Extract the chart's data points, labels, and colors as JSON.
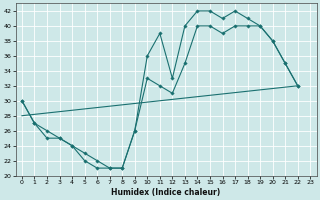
{
  "xlabel": "Humidex (Indice chaleur)",
  "bg_color": "#cee8e8",
  "line_color": "#1a7070",
  "grid_color": "#ffffff",
  "xlim": [
    -0.5,
    23.5
  ],
  "ylim": [
    20,
    43
  ],
  "yticks": [
    20,
    22,
    24,
    26,
    28,
    30,
    32,
    34,
    36,
    38,
    40,
    42
  ],
  "xticks": [
    0,
    1,
    2,
    3,
    4,
    5,
    6,
    7,
    8,
    9,
    10,
    11,
    12,
    13,
    14,
    15,
    16,
    17,
    18,
    19,
    20,
    21,
    22,
    23
  ],
  "curve1_x": [
    0,
    1,
    2,
    3,
    4,
    5,
    6,
    7,
    8,
    9,
    10,
    11,
    12,
    13,
    14,
    15,
    16,
    17,
    18,
    19,
    20,
    21,
    22
  ],
  "curve1_y": [
    30,
    27,
    25,
    25,
    24,
    22,
    21,
    21,
    21,
    26,
    36,
    39,
    33,
    40,
    42,
    42,
    41,
    42,
    41,
    40,
    38,
    35,
    32
  ],
  "curve2_x": [
    0,
    1,
    2,
    3,
    4,
    5,
    6,
    7,
    8,
    9,
    10,
    11,
    12,
    13,
    14,
    15,
    16,
    17,
    18,
    19,
    20,
    21,
    22
  ],
  "curve2_y": [
    30,
    27,
    26,
    25,
    24,
    23,
    22,
    21,
    21,
    26,
    33,
    32,
    31,
    35,
    40,
    40,
    39,
    40,
    40,
    40,
    38,
    35,
    32
  ],
  "curve3_x": [
    0,
    22
  ],
  "curve3_y": [
    28,
    32
  ],
  "xlabel_fontsize": 5.5,
  "tick_fontsize": 4.5,
  "linewidth": 0.8,
  "markersize": 1.8
}
